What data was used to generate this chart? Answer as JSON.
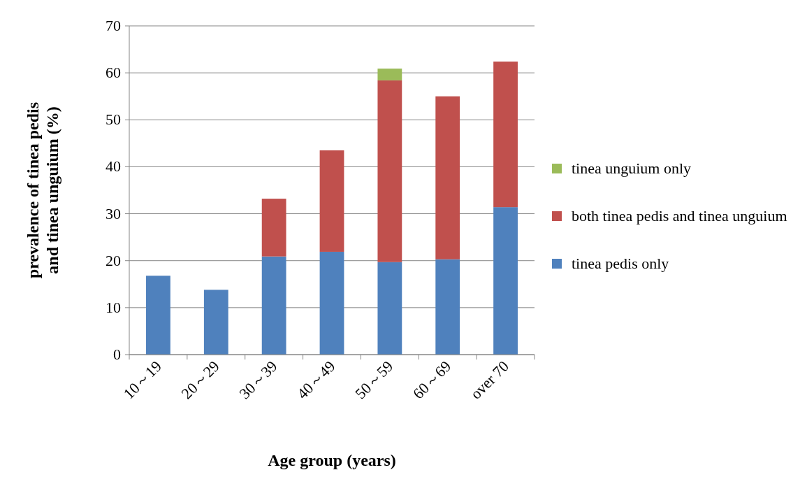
{
  "chart_data": {
    "type": "bar",
    "stacked": true,
    "categories": [
      "10～19",
      "20～29",
      "30～39",
      "40～49",
      "50～59",
      "60～69",
      "over 70"
    ],
    "series": [
      {
        "name": "tinea pedis only",
        "color": "#4f81bd",
        "values": [
          16.8,
          13.8,
          20.9,
          21.9,
          19.7,
          20.3,
          31.4
        ]
      },
      {
        "name": "both tinea pedis and tinea unguium",
        "color": "#c0504d",
        "values": [
          null,
          null,
          12.3,
          21.6,
          38.7,
          34.7,
          31.0
        ]
      },
      {
        "name": "tinea unguium only",
        "color": "#9bbb59",
        "values": [
          null,
          null,
          null,
          null,
          2.5,
          null,
          null
        ]
      }
    ],
    "xlabel": "Age group (years)",
    "ylabel": "prevalence of tinea pedis\nand tinea unguium (%)",
    "ylim": [
      0,
      70
    ],
    "yticks": [
      0,
      10,
      20,
      30,
      40,
      50,
      60,
      70
    ],
    "grid": "y",
    "legend": "right"
  }
}
